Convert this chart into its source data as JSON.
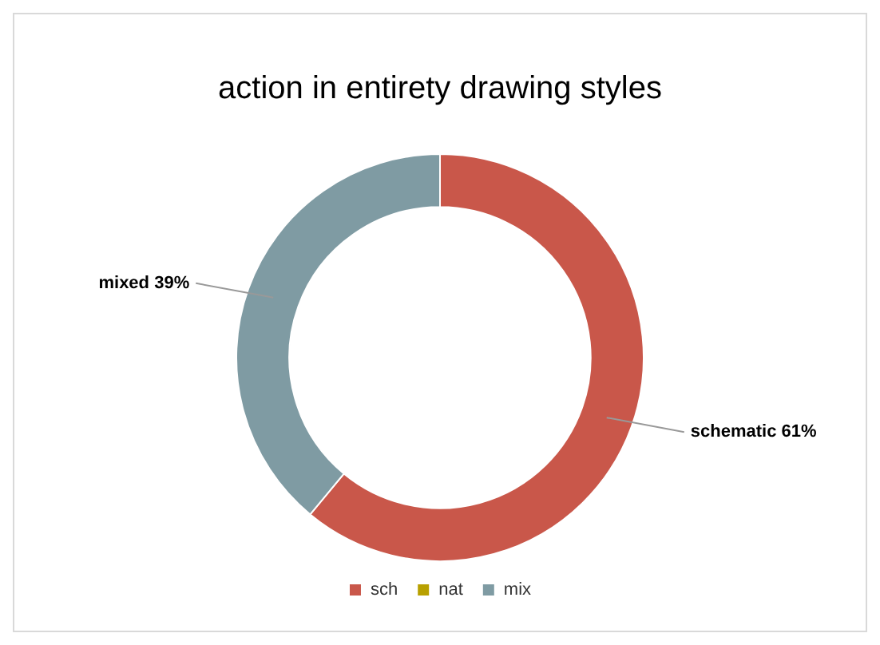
{
  "chart_data": {
    "type": "donut",
    "title": "action in entirety drawing styles",
    "categories": [
      "sch",
      "nat",
      "mix"
    ],
    "values": [
      61,
      0,
      39
    ],
    "colors": [
      "#c9574a",
      "#b8a000",
      "#7f9ba3"
    ],
    "value_labels": [
      "schematic 61%",
      null,
      "mixed 39%"
    ],
    "legend": "bottom"
  }
}
